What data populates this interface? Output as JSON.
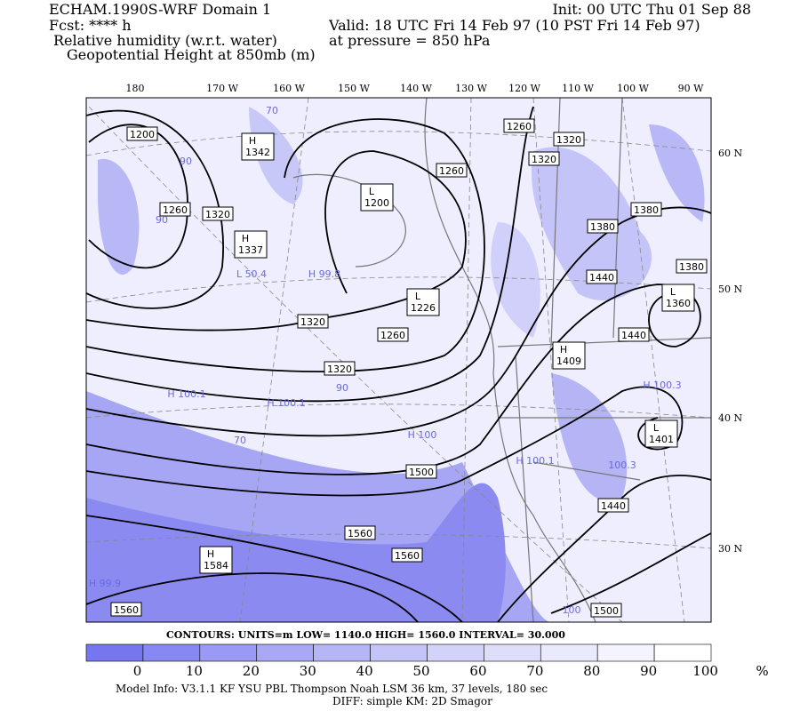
{
  "header": {
    "model": "ECHAM.1990S-WRF Domain 1",
    "forecast": "Fcst: **** h",
    "field_shaded": "Relative humidity (w.r.t. water)",
    "field_contour": "Geopotential Height at 850mb (m)",
    "init": "Init: 00 UTC Thu 01 Sep 88",
    "valid": "Valid: 18 UTC Fri 14 Feb 97 (10 PST Fri 14 Feb 97)",
    "level": "at pressure =  850 hPa"
  },
  "longitudes": [
    "180",
    "170 W",
    "160 W",
    "150 W",
    "140 W",
    "130 W",
    "120 W",
    "110 W",
    "100 W",
    "90 W"
  ],
  "latitudes": [
    "60 N",
    "50 N",
    "40 N",
    "30 N"
  ],
  "contour_labels": [
    "1200",
    "1260",
    "1320",
    "1260",
    "1260",
    "1320",
    "1320",
    "1380",
    "1380",
    "1380",
    "1440",
    "1440",
    "1320",
    "1260",
    "1320",
    "1440",
    "1500",
    "1560",
    "1560",
    "1560",
    "1500"
  ],
  "centers": [
    {
      "letter": "H",
      "value": "1342"
    },
    {
      "letter": "L",
      "value": "1200"
    },
    {
      "letter": "H",
      "value": "1337"
    },
    {
      "letter": "L",
      "value": "1226"
    },
    {
      "letter": "H",
      "value": "1409"
    },
    {
      "letter": "L",
      "value": "1360"
    },
    {
      "letter": "L",
      "value": "1401"
    },
    {
      "letter": "H",
      "value": "1584"
    }
  ],
  "humidity_labels": [
    "H 99.8",
    "L 50.4",
    "H 100.1",
    "H 100.1",
    "H 100",
    "H 100.1",
    "100.3",
    "H 100.3",
    "H 99.9",
    "70",
    "90",
    "90",
    "70",
    "90",
    "100"
  ],
  "footer": {
    "contours": "CONTOURS:  UNITS=m  LOW=   1140.0     HIGH=  1560.0     INTERVAL=    30.000",
    "model_info": "Model Info: V3.1.1    KF       YSU PBL   Thompson     Noah LSM   36 km,    37 levels,   180 sec",
    "diff_info": "DIFF: simple KM: 2D Smagor"
  },
  "colorbar": {
    "colors": [
      "#7676f0",
      "#8888f2",
      "#9a9af4",
      "#a8a8f5",
      "#b6b6f6",
      "#c4c4f8",
      "#d2d2fa",
      "#dedefb",
      "#eaeafd",
      "#f4f4fe",
      "#ffffff"
    ],
    "labels": [
      "0",
      "10",
      "20",
      "30",
      "40",
      "50",
      "60",
      "70",
      "80",
      "90",
      "100",
      "%"
    ]
  }
}
